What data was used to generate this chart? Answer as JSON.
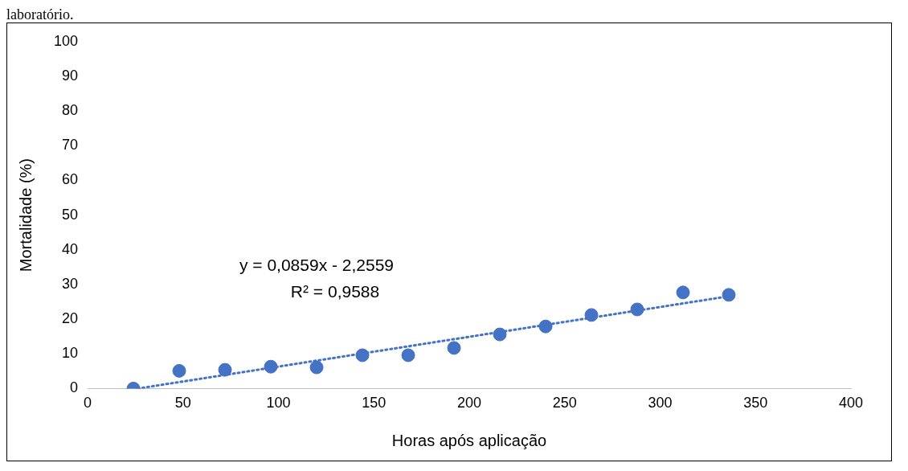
{
  "chart_data": {
    "type": "scatter",
    "xlabel": "Horas após aplicação",
    "ylabel": "Mortalidade (%)",
    "annotations": [
      "laboratório.",
      "y = 0,0859x - 2,2559",
      "R² = 0,9588"
    ],
    "series": [
      {
        "color": "#4472c4",
        "x": [
          24,
          48,
          72,
          96,
          120,
          144,
          168,
          192,
          216,
          240,
          264,
          288,
          312,
          336
        ],
        "values": [
          0,
          5.1,
          5.4,
          6.3,
          6.1,
          9.6,
          9.6,
          11.7,
          15.6,
          17.9,
          21.2,
          22.8,
          27.7,
          27.0
        ]
      },
      {
        "type": "line",
        "color": "#4472c4",
        "line_style": "dotted",
        "marker": "none",
        "x": [
          26.3,
          336
        ],
        "values": [
          0,
          26.6
        ]
      }
    ],
    "xlim": [
      0,
      400
    ],
    "xticks": [
      0,
      50,
      100,
      150,
      200,
      250,
      300,
      350,
      400
    ],
    "ylim": [
      0,
      100
    ],
    "yticks": [
      0,
      10,
      20,
      30,
      40,
      50,
      60,
      70,
      80,
      90,
      100
    ],
    "grid": false,
    "legend": false,
    "marker": "circle"
  }
}
